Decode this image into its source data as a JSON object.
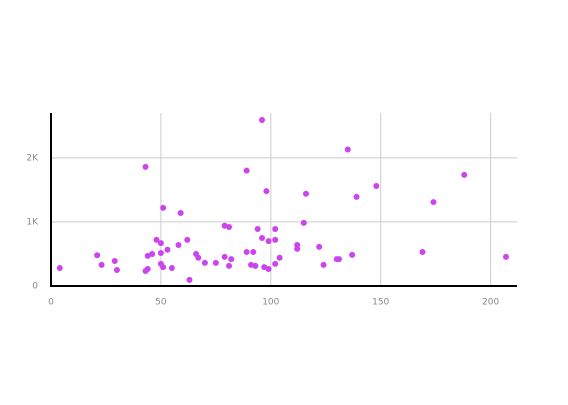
{
  "chart_data": {
    "type": "scatter",
    "color": "#cc44ee",
    "grid": true,
    "xlim": [
      0,
      212
    ],
    "ylim": [
      0,
      2700
    ],
    "xticks": [
      0,
      50,
      100,
      150,
      200
    ],
    "yticks": [
      0,
      {
        "value": 1000,
        "label": "1K"
      },
      {
        "value": 2000,
        "label": "2K"
      }
    ],
    "x": [
      4,
      21,
      23,
      29,
      30,
      43,
      44,
      43,
      44,
      46,
      48,
      50,
      50,
      50,
      51,
      53,
      51,
      55,
      58,
      59,
      62,
      63,
      66,
      67,
      70,
      75,
      79,
      81,
      79,
      81,
      82,
      89,
      89,
      91,
      92,
      93,
      94,
      96,
      96,
      98,
      99,
      97,
      99,
      102,
      102,
      102,
      104,
      112,
      112,
      115,
      116,
      122,
      124,
      130,
      131,
      135,
      137,
      139,
      148,
      169,
      174,
      188,
      207
    ],
    "y": [
      280,
      480,
      330,
      390,
      250,
      1860,
      470,
      235,
      265,
      500,
      720,
      670,
      515,
      345,
      295,
      565,
      1220,
      280,
      640,
      1140,
      720,
      95,
      500,
      440,
      360,
      360,
      940,
      920,
      455,
      315,
      420,
      1800,
      530,
      330,
      530,
      315,
      890,
      750,
      2590,
      1480,
      700,
      295,
      265,
      720,
      890,
      345,
      440,
      640,
      580,
      985,
      1440,
      610,
      330,
      420,
      420,
      2130,
      485,
      1390,
      1560,
      530,
      1310,
      1735,
      455
    ]
  }
}
